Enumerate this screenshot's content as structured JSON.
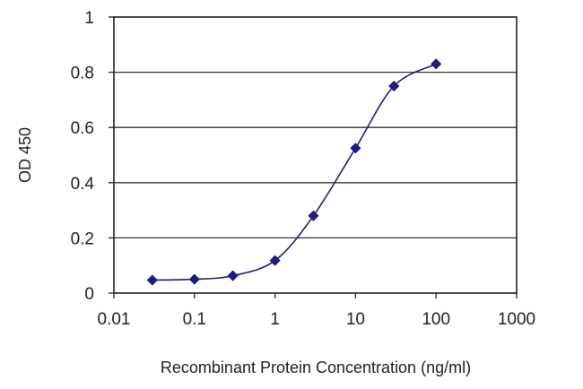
{
  "chart_data": {
    "type": "line",
    "title": "",
    "xlabel": "Recombinant Protein Concentration (ng/ml)",
    "ylabel": "OD 450",
    "x_scale": "log",
    "xlim": [
      0.01,
      1000
    ],
    "ylim": [
      0,
      1
    ],
    "x_ticks": [
      0.01,
      0.1,
      1,
      10,
      100,
      1000
    ],
    "x_tick_labels": [
      "0.01",
      "0.1",
      "1",
      "10",
      "100",
      "1000"
    ],
    "y_ticks": [
      0,
      0.2,
      0.4,
      0.6,
      0.8,
      1
    ],
    "y_tick_labels": [
      "0",
      "0.2",
      "0.4",
      "0.6",
      "0.8",
      "1"
    ],
    "grid": "horizontal",
    "legend": "none",
    "series": [
      {
        "x": [
          0.03,
          0.1,
          0.3,
          1,
          3,
          10,
          30,
          100
        ],
        "y": [
          0.047,
          0.05,
          0.063,
          0.118,
          0.28,
          0.525,
          0.75,
          0.83
        ],
        "fit_curve": true
      }
    ],
    "colors": {
      "series": "#1c1c82",
      "grid": "#333333",
      "axis": "#222222"
    }
  }
}
